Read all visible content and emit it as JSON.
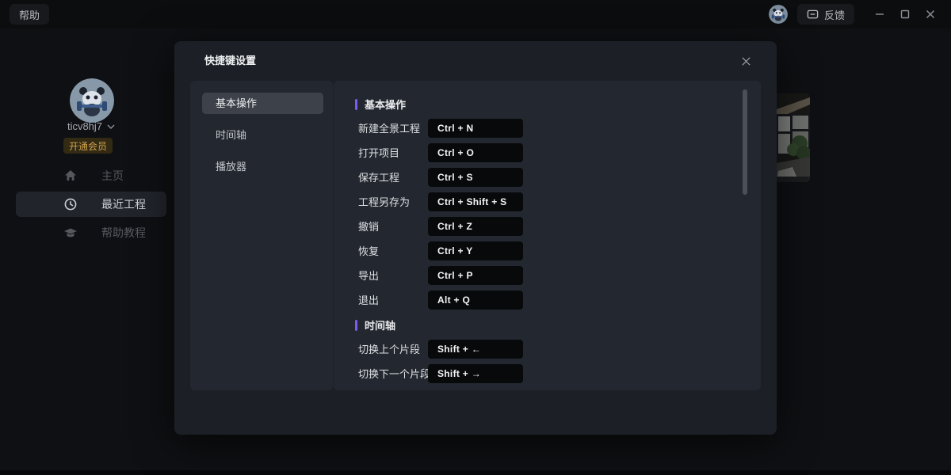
{
  "titlebar": {
    "help_label": "帮助",
    "feedback_label": "反馈",
    "feedback_icon": "chat-icon",
    "window_controls": [
      {
        "name": "minimize"
      },
      {
        "name": "maximize"
      },
      {
        "name": "close"
      }
    ]
  },
  "sidebar": {
    "avatar": "panda-avatar",
    "username": "ticv8hj7",
    "username_chevron": "chevron-down-icon",
    "membership_label": "开通会员",
    "nav": [
      {
        "label": "主页",
        "icon": "home-icon",
        "active": false
      },
      {
        "label": "最近工程",
        "icon": "clock-icon",
        "active": true
      },
      {
        "label": "帮助教程",
        "icon": "graduation-cap-icon",
        "active": false
      }
    ]
  },
  "background": {
    "recent_project_thumbnail": "interior-room-photo"
  },
  "dialog": {
    "title": "快捷键设置",
    "close_icon": "close-icon",
    "tabs": [
      {
        "label": "基本操作",
        "active": true
      },
      {
        "label": "时间轴",
        "active": false
      },
      {
        "label": "播放器",
        "active": false
      }
    ],
    "sections": [
      {
        "title": "基本操作",
        "rows": [
          {
            "label": "新建全景工程",
            "keys": "Ctrl + N"
          },
          {
            "label": "打开项目",
            "keys": "Ctrl + O"
          },
          {
            "label": "保存工程",
            "keys": "Ctrl + S"
          },
          {
            "label": "工程另存为",
            "keys": "Ctrl + Shift + S"
          },
          {
            "label": "撤销",
            "keys": "Ctrl + Z"
          },
          {
            "label": "恢复",
            "keys": "Ctrl + Y"
          },
          {
            "label": "导出",
            "keys": "Ctrl + P"
          },
          {
            "label": "退出",
            "keys": "Alt + Q"
          }
        ]
      },
      {
        "title": "时间轴",
        "rows": [
          {
            "label": "切换上个片段",
            "keys": "Shift + ←"
          },
          {
            "label": "切换下一个片段",
            "keys": "Shift + →"
          }
        ]
      }
    ]
  },
  "colors": {
    "accent_purple": "#7b5cf0",
    "membership_gold": "#cfa14e"
  }
}
